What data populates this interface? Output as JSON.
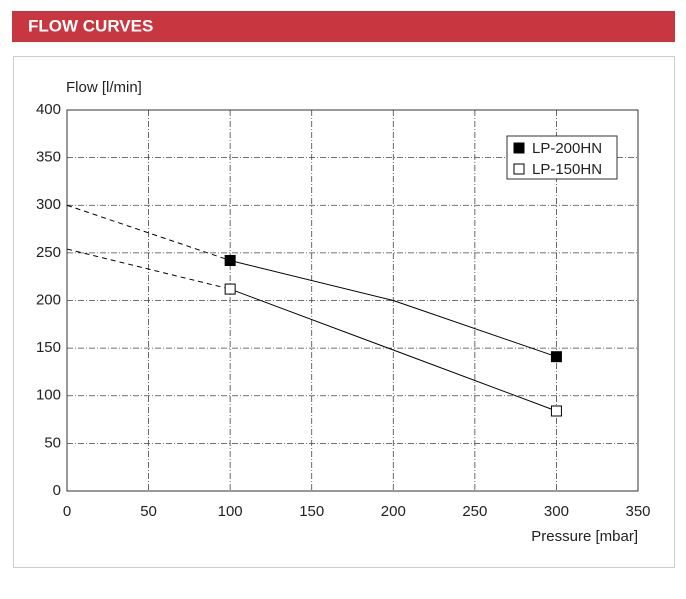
{
  "header": {
    "title": "FLOW CURVES"
  },
  "chart_data": {
    "type": "line",
    "y_label": "Flow [l/min]",
    "x_label": "Pressure [mbar]",
    "x": [
      0,
      100,
      200,
      300
    ],
    "series": [
      {
        "name": "LP-200HN",
        "color": "#000000",
        "marker": "filled",
        "values": [
          300,
          242,
          200,
          141
        ],
        "markers": [
          false,
          true,
          false,
          true
        ],
        "line_styles": [
          "dashed",
          "solid",
          "solid"
        ]
      },
      {
        "name": "LP-150HN",
        "color": "#000000",
        "marker": "open",
        "values": [
          254,
          212,
          148,
          84
        ],
        "markers": [
          false,
          true,
          false,
          true
        ],
        "line_styles": [
          "dashed",
          "solid",
          "solid"
        ]
      }
    ],
    "xlim": [
      0,
      350
    ],
    "xticks": [
      0,
      50,
      100,
      150,
      200,
      250,
      300,
      350
    ],
    "ylim": [
      0,
      400
    ],
    "yticks": [
      0,
      50,
      100,
      150,
      200,
      250,
      300,
      350,
      400
    ],
    "grid": true,
    "legend": "upper right"
  }
}
